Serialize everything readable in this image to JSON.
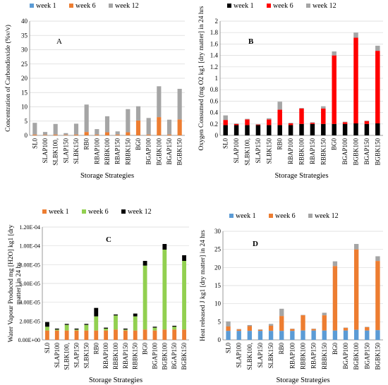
{
  "categories": [
    "SL0",
    "SLAP100",
    "SLBK100,",
    "SLAP150",
    "SLBK150",
    "RB0",
    "RBAP100",
    "RBBK100",
    "RBAP150",
    "RBBK150",
    "BG0",
    "BGAP100",
    "BGBK100",
    "BGAP150",
    "BGBK150"
  ],
  "chart_data": [
    {
      "type": "bar",
      "stacked": true,
      "panel_letter": "A",
      "xlabel": "Storage Strategies",
      "ylabel": "Concentration of Carbondioxide (%v/v)",
      "ylim": [
        0,
        40
      ],
      "yticks": [
        "0",
        "5",
        "10",
        "15",
        "20",
        "25",
        "30",
        "35",
        "40"
      ],
      "legend_position": "top-left",
      "series": [
        {
          "name": "week 1",
          "color": "#5b9bd5",
          "values": [
            0,
            0,
            0,
            0,
            0,
            0,
            0,
            0,
            0,
            0,
            0,
            0,
            0,
            0,
            0
          ]
        },
        {
          "name": "week 6",
          "color": "#ed7d31",
          "values": [
            0.3,
            0.2,
            0.3,
            0.2,
            0.3,
            1.2,
            0.3,
            1.1,
            0.3,
            1.1,
            5.2,
            0.3,
            6.4,
            0.3,
            5.6
          ]
        },
        {
          "name": "week 12",
          "color": "#a5a5a5",
          "values": [
            4.1,
            1.0,
            3.7,
            0.6,
            3.8,
            9.6,
            1.9,
            5.6,
            1.1,
            8.1,
            5.0,
            5.8,
            10.8,
            5.2,
            10.7
          ]
        }
      ]
    },
    {
      "type": "bar",
      "stacked": true,
      "panel_letter": "B",
      "xlabel": "Storage Strategies",
      "ylabel": "Oxygen Consumed (mg O2 kg1 [dry matter] in 24 hrs",
      "ylim": [
        0,
        2
      ],
      "yticks": [
        "0",
        "0.2",
        "0.4",
        "0.6",
        "0.8",
        "1",
        "1.2",
        "1.4",
        "1.6",
        "1.8",
        "2"
      ],
      "legend_position": "top-left",
      "series": [
        {
          "name": "week 1",
          "color": "#000000",
          "values": [
            0.18,
            0.18,
            0.18,
            0.18,
            0.18,
            0.18,
            0.18,
            0.2,
            0.2,
            0.2,
            0.2,
            0.2,
            0.21,
            0.2,
            0.21
          ]
        },
        {
          "name": "week 6",
          "color": "#ff0000",
          "values": [
            0.09,
            0.02,
            0.1,
            0.01,
            0.1,
            0.27,
            0.03,
            0.27,
            0.02,
            0.27,
            1.2,
            0.03,
            1.5,
            0.05,
            1.27
          ]
        },
        {
          "name": "week 12",
          "color": "#a5a5a5",
          "values": [
            0.08,
            0.01,
            0.01,
            0.01,
            0.02,
            0.14,
            0.01,
            0.01,
            0.01,
            0.04,
            0.07,
            0.01,
            0.09,
            0.01,
            0.09
          ]
        }
      ]
    },
    {
      "type": "bar",
      "stacked": true,
      "panel_letter": "C",
      "xlabel": "Storage Strategies",
      "ylabel": "Water Vapour Produced mg [H2O] kg1 [dry matter] in 24 hs",
      "ylim": [
        0,
        0.00012
      ],
      "yticks": [
        "0.00E+00",
        "2.00E-05",
        "4.00E-05",
        "6.00E-05",
        "8.00E-05",
        "1.00E-04",
        "1.20E-04"
      ],
      "legend_position": "top-left",
      "series": [
        {
          "name": "week 1",
          "color": "#ed7d31",
          "values": [
            1e-05,
            1e-05,
            1e-05,
            1e-05,
            1e-05,
            1e-05,
            1e-05,
            1.1e-05,
            1e-05,
            1e-05,
            1.1e-05,
            1e-05,
            1.1e-05,
            1.1e-05,
            1.1e-05
          ]
        },
        {
          "name": "week 6",
          "color": "#92d050",
          "values": [
            4e-06,
            1e-06,
            6e-06,
            1e-06,
            6e-06,
            1.5e-05,
            2e-06,
            1.5e-05,
            1e-06,
            1.5e-05,
            6.8e-05,
            3e-06,
            8.5e-05,
            3e-06,
            7.3e-05
          ]
        },
        {
          "name": "week 12",
          "color": "#000000",
          "values": [
            5e-06,
            1e-06,
            1e-06,
            1e-06,
            1e-06,
            9e-06,
            1e-06,
            1e-06,
            1e-06,
            3e-06,
            5e-06,
            1e-06,
            6e-06,
            1e-06,
            6e-06
          ]
        }
      ]
    },
    {
      "type": "bar",
      "stacked": true,
      "panel_letter": "D",
      "xlabel": "Storage Strategies",
      "ylabel": "Heat released J kg1 [dry matter] in 24 hrs",
      "ylim": [
        0,
        30
      ],
      "yticks": [
        "0",
        "5",
        "10",
        "15",
        "20",
        "25",
        "30"
      ],
      "legend_position": "top-left",
      "series": [
        {
          "name": "week 1",
          "color": "#5b9bd5",
          "values": [
            2.5,
            2.5,
            2.5,
            2.5,
            2.5,
            2.5,
            2.5,
            2.6,
            2.6,
            2.6,
            2.6,
            2.6,
            2.8,
            2.6,
            2.7
          ]
        },
        {
          "name": "week 6",
          "color": "#ed7d31",
          "values": [
            1.2,
            0.4,
            1.3,
            0.3,
            1.4,
            4.1,
            0.5,
            4.2,
            0.4,
            4.2,
            17.8,
            0.7,
            22.2,
            0.9,
            19.1
          ]
        },
        {
          "name": "week 12",
          "color": "#a5a5a5",
          "values": [
            1.4,
            0.1,
            0.3,
            0.1,
            0.5,
            2.0,
            0.1,
            0.1,
            0.1,
            0.7,
            1.3,
            0.1,
            1.5,
            0.1,
            1.3
          ]
        }
      ]
    }
  ]
}
